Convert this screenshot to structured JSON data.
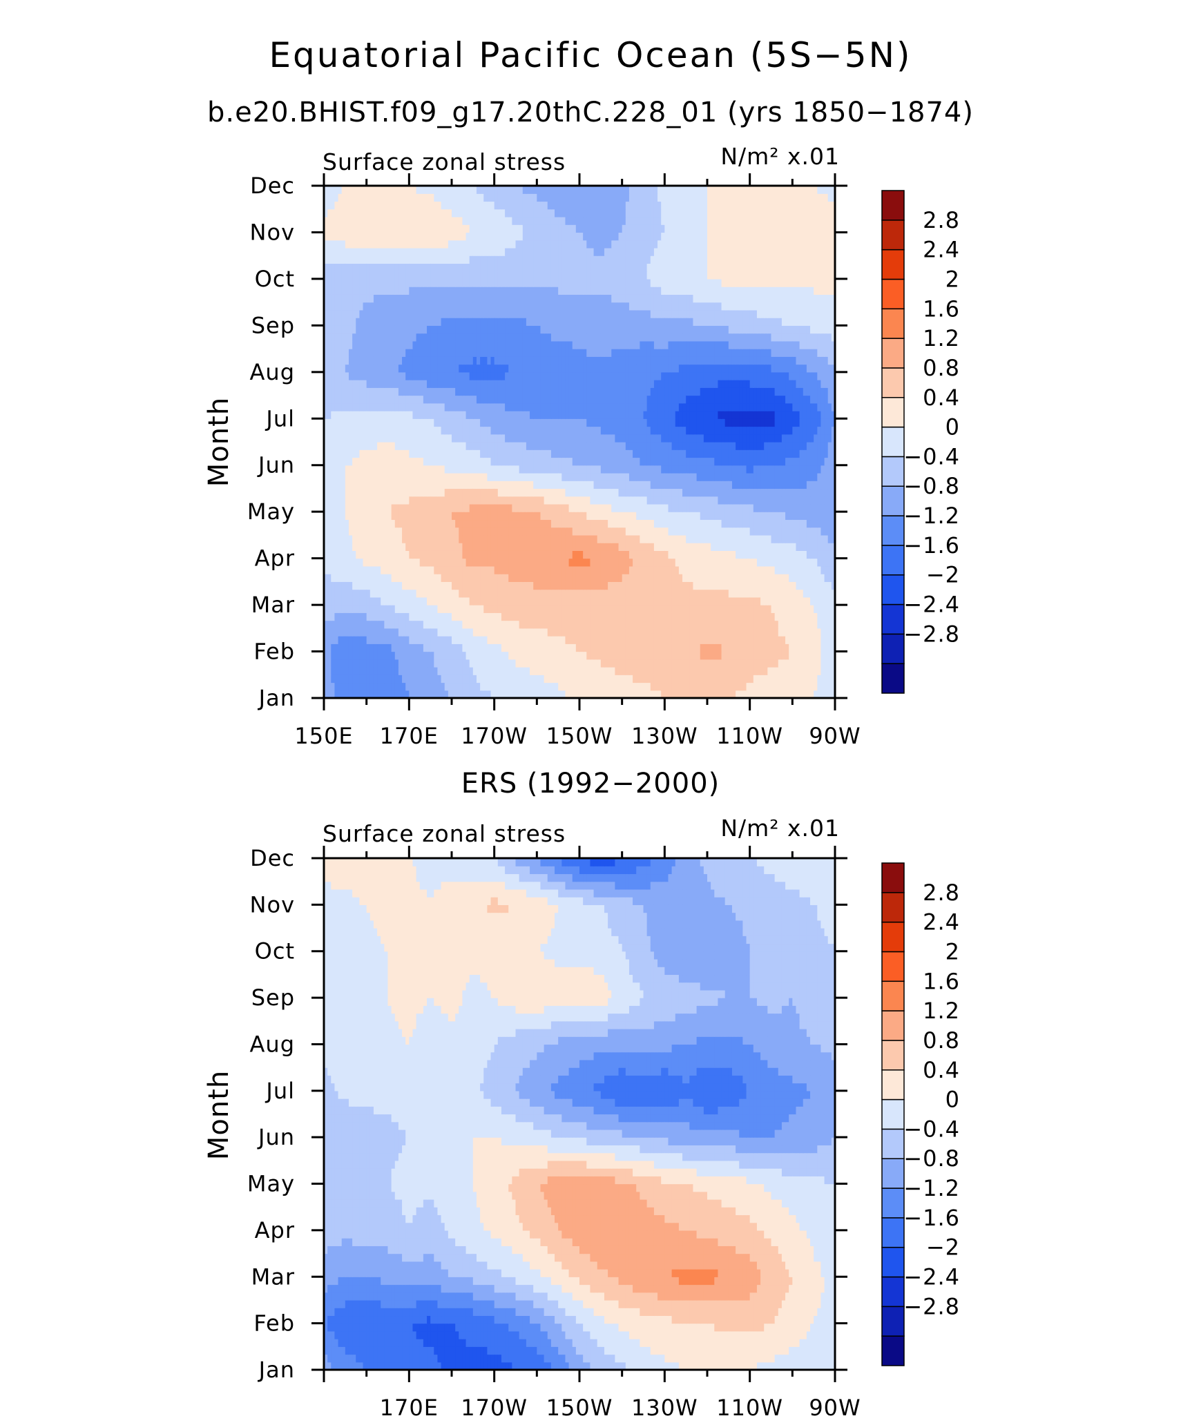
{
  "figure": {
    "title": "Equatorial Pacific Ocean (5S−5N)"
  },
  "colorbar": {
    "colors": [
      "#0a0a86",
      "#0e21b4",
      "#1435d4",
      "#1f55ee",
      "#3d74f5",
      "#5c8df7",
      "#88aaf8",
      "#b3c9fb",
      "#d8e6fc",
      "#fde8d8",
      "#fcc9ae",
      "#fbaa85",
      "#fb8650",
      "#fb5e25",
      "#e43c0a",
      "#bd280a",
      "#8a0d0d"
    ],
    "labels": [
      "2.8",
      "2.4",
      "2",
      "1.6",
      "1.2",
      "0.8",
      "0.4",
      "0",
      "−0.4",
      "−0.8",
      "−1.2",
      "−1.6",
      "−2",
      "−2.4",
      "−2.8"
    ]
  },
  "chart_data": [
    {
      "type": "heatmap",
      "subtitle": "b.e20.BHIST.f09_g17.20thC.228_01 (yrs 1850−1874)",
      "left_label": "Surface zonal stress",
      "units_label": "N/m² x.01",
      "ylabel": "Month",
      "xlabel": "",
      "x_tick_labels": [
        "150E",
        "170E",
        "170W",
        "150W",
        "130W",
        "110W",
        "90W"
      ],
      "y_tick_labels": [
        "Jan",
        "Feb",
        "Mar",
        "Apr",
        "May",
        "Jun",
        "Jul",
        "Aug",
        "Sep",
        "Oct",
        "Nov",
        "Dec"
      ],
      "xlim": [
        150,
        270
      ],
      "ylim": [
        1,
        12
      ],
      "levels": [
        -2.8,
        -2.4,
        -2,
        -1.6,
        -1.2,
        -0.8,
        -0.4,
        0,
        0.4,
        0.8,
        1.2,
        1.6,
        2,
        2.4,
        2.8
      ],
      "x": [
        150,
        155,
        160,
        165,
        170,
        175,
        180,
        185,
        190,
        195,
        200,
        205,
        210,
        215,
        220,
        225,
        230,
        235,
        240,
        245,
        250,
        255,
        260,
        265,
        270
      ],
      "y": [
        1,
        2,
        3,
        4,
        5,
        6,
        7,
        8,
        9,
        10,
        11,
        12
      ],
      "z": [
        [
          -0.6,
          -1.0,
          -1.0,
          -1.0,
          -0.8,
          -0.6,
          -0.4,
          -0.1,
          0.0,
          0.1,
          0.2,
          0.3,
          0.5,
          0.5,
          0.6,
          0.7,
          0.8,
          0.8,
          0.8,
          0.8,
          0.7,
          0.6,
          0.5,
          0.4,
          0.0
        ],
        [
          -0.7,
          -1.1,
          -1.0,
          -0.9,
          -0.6,
          -0.4,
          -0.2,
          0.1,
          0.3,
          0.5,
          0.6,
          0.7,
          0.8,
          0.9,
          1.0,
          1.0,
          1.0,
          1.1,
          1.3,
          1.2,
          1.0,
          0.9,
          0.8,
          0.6,
          0.1
        ],
        [
          -0.2,
          -0.3,
          -0.2,
          0.0,
          0.2,
          0.4,
          0.6,
          0.8,
          0.9,
          1.0,
          1.0,
          1.0,
          1.0,
          1.0,
          0.9,
          0.9,
          0.9,
          0.9,
          0.9,
          0.9,
          0.9,
          0.8,
          0.6,
          0.4,
          0.1
        ],
        [
          0.1,
          0.3,
          0.5,
          0.6,
          0.8,
          0.9,
          1.1,
          1.3,
          1.3,
          1.4,
          1.5,
          1.6,
          1.7,
          1.6,
          1.4,
          1.1,
          0.9,
          0.7,
          0.6,
          0.5,
          0.4,
          0.3,
          0.2,
          0.0,
          -0.3
        ],
        [
          0.2,
          0.4,
          0.6,
          0.8,
          0.9,
          1.0,
          1.2,
          1.3,
          1.4,
          1.3,
          1.2,
          1.0,
          0.8,
          0.6,
          0.4,
          0.3,
          0.1,
          0.0,
          -0.1,
          -0.2,
          -0.3,
          -0.4,
          -0.5,
          -0.6,
          -0.7
        ],
        [
          0.3,
          0.4,
          0.5,
          0.6,
          0.5,
          0.4,
          0.3,
          0.2,
          0.0,
          -0.1,
          -0.2,
          -0.3,
          -0.4,
          -0.5,
          -0.6,
          -0.8,
          -0.9,
          -1.0,
          -1.1,
          -1.2,
          -1.3,
          -1.2,
          -1.1,
          -0.9,
          -0.6
        ],
        [
          0.0,
          0.1,
          0.2,
          0.2,
          0.1,
          0.0,
          -0.2,
          -0.4,
          -0.6,
          -0.7,
          -0.8,
          -0.8,
          -0.8,
          -0.9,
          -1.0,
          -1.2,
          -1.5,
          -1.8,
          -2.0,
          -2.1,
          -2.2,
          -2.1,
          -1.8,
          -1.4,
          -0.8
        ],
        [
          -0.3,
          -0.4,
          -0.6,
          -0.7,
          -0.9,
          -1.1,
          -1.2,
          -1.3,
          -1.3,
          -1.2,
          -1.1,
          -1.0,
          -0.9,
          -0.9,
          -1.0,
          -1.1,
          -1.2,
          -1.3,
          -1.4,
          -1.5,
          -1.4,
          -1.3,
          -1.1,
          -0.8,
          -0.5
        ],
        [
          -0.2,
          -0.3,
          -0.5,
          -0.6,
          -0.7,
          -0.8,
          -0.9,
          -0.9,
          -0.9,
          -0.9,
          -0.8,
          -0.7,
          -0.7,
          -0.6,
          -0.6,
          -0.6,
          -0.5,
          -0.5,
          -0.4,
          -0.3,
          -0.2,
          -0.1,
          0.0,
          0.1,
          0.2
        ],
        [
          -0.2,
          -0.2,
          -0.3,
          -0.3,
          -0.3,
          -0.3,
          -0.3,
          -0.3,
          -0.3,
          -0.3,
          -0.3,
          -0.3,
          -0.3,
          -0.3,
          -0.2,
          0.0,
          0.2,
          0.3,
          0.4,
          0.5,
          0.5,
          0.5,
          0.5,
          0.5,
          0.5
        ],
        [
          0.5,
          0.6,
          0.7,
          0.8,
          0.8,
          0.8,
          0.6,
          0.4,
          0.3,
          0.1,
          -0.1,
          -0.3,
          -0.4,
          -0.5,
          -0.4,
          -0.2,
          0.0,
          0.2,
          0.4,
          0.5,
          0.6,
          0.6,
          0.6,
          0.6,
          0.6
        ],
        [
          0.2,
          0.4,
          0.5,
          0.5,
          0.4,
          0.3,
          0.1,
          0.0,
          -0.2,
          -0.4,
          -0.5,
          -0.6,
          -0.7,
          -0.7,
          -0.5,
          -0.2,
          0.1,
          0.3,
          0.4,
          0.5,
          0.5,
          0.5,
          0.5,
          0.4,
          0.3
        ]
      ]
    },
    {
      "type": "heatmap",
      "subtitle": "ERS (1992−2000)",
      "left_label": "Surface zonal stress",
      "units_label": "N/m² x.01",
      "ylabel": "Month",
      "xlabel": "",
      "x_tick_labels": [
        "170E",
        "170W",
        "150W",
        "130W",
        "110W",
        "90W"
      ],
      "y_tick_labels": [
        "Jan",
        "Feb",
        "Mar",
        "Apr",
        "May",
        "Jun",
        "Jul",
        "Aug",
        "Sep",
        "Oct",
        "Nov",
        "Dec"
      ],
      "xlim": [
        150,
        270
      ],
      "ylim": [
        1,
        12
      ],
      "levels": [
        -2.8,
        -2.4,
        -2,
        -1.6,
        -1.2,
        -0.8,
        -0.4,
        0,
        0.4,
        0.8,
        1.2,
        1.6,
        2,
        2.4,
        2.8
      ],
      "x": [
        150,
        155,
        160,
        165,
        170,
        175,
        180,
        185,
        190,
        195,
        200,
        205,
        210,
        215,
        220,
        225,
        230,
        235,
        240,
        245,
        250,
        255,
        260,
        265,
        270
      ],
      "y": [
        1,
        2,
        3,
        4,
        5,
        6,
        7,
        8,
        9,
        10,
        11,
        12
      ],
      "z": [
        [
          -0.6,
          -1.0,
          -1.2,
          -1.3,
          -1.5,
          -1.5,
          -1.7,
          -1.7,
          -1.8,
          -1.6,
          -1.5,
          -1.1,
          -0.6,
          -0.3,
          -0.1,
          0.2,
          0.3,
          0.4,
          0.5,
          0.5,
          0.4,
          0.3,
          0.2,
          0.2,
          0.1
        ],
        [
          -1.2,
          -1.5,
          -1.6,
          -1.5,
          -1.6,
          -1.7,
          -1.6,
          -1.5,
          -1.3,
          -1.1,
          -0.8,
          -0.4,
          0.0,
          0.3,
          0.5,
          0.6,
          0.7,
          0.8,
          0.8,
          0.9,
          0.9,
          0.8,
          0.6,
          0.4,
          0.3
        ],
        [
          -0.6,
          -0.8,
          -0.8,
          -0.7,
          -0.6,
          -0.6,
          -0.4,
          -0.3,
          -0.1,
          0.1,
          0.3,
          0.6,
          0.9,
          1.1,
          1.3,
          1.5,
          1.6,
          1.7,
          1.7,
          1.6,
          1.4,
          1.1,
          0.8,
          0.5,
          0.3
        ],
        [
          -0.2,
          -0.3,
          -0.2,
          -0.2,
          0.0,
          -0.2,
          0.1,
          0.3,
          0.5,
          0.7,
          0.9,
          1.2,
          1.4,
          1.6,
          1.6,
          1.4,
          1.3,
          1.2,
          1.1,
          1.0,
          0.9,
          0.7,
          0.5,
          0.3,
          0.1
        ],
        [
          -0.1,
          -0.2,
          -0.1,
          0.0,
          0.1,
          0.1,
          0.2,
          0.4,
          0.6,
          0.9,
          1.2,
          1.4,
          1.5,
          1.4,
          1.3,
          1.1,
          0.9,
          0.8,
          0.7,
          0.6,
          0.5,
          0.3,
          0.2,
          0.1,
          0.0
        ],
        [
          -0.3,
          -0.4,
          -0.3,
          -0.1,
          0.0,
          0.2,
          0.3,
          0.4,
          0.4,
          0.3,
          0.2,
          0.0,
          -0.1,
          -0.2,
          -0.3,
          -0.4,
          -0.5,
          -0.6,
          -0.7,
          -0.7,
          -0.8,
          -0.8,
          -0.7,
          -0.6,
          -0.4
        ],
        [
          -0.1,
          0.1,
          0.2,
          0.1,
          0.2,
          0.3,
          0.2,
          0.1,
          -0.2,
          -0.4,
          -0.7,
          -0.9,
          -1.1,
          -1.3,
          -1.6,
          -1.5,
          -1.6,
          -1.3,
          -1.6,
          -1.5,
          -1.2,
          -1.0,
          -0.9,
          -0.8,
          -0.6
        ],
        [
          0.1,
          0.2,
          0.2,
          0.3,
          0.4,
          0.2,
          0.3,
          0.2,
          0.0,
          -0.2,
          -0.3,
          -0.5,
          -0.6,
          -0.7,
          -0.7,
          -0.6,
          -0.7,
          -0.8,
          -0.9,
          -0.9,
          -0.8,
          -0.6,
          -0.5,
          -0.4,
          -0.3
        ],
        [
          0.1,
          0.2,
          0.3,
          0.4,
          0.5,
          0.4,
          0.5,
          0.3,
          0.4,
          0.6,
          0.7,
          0.6,
          0.7,
          0.6,
          0.3,
          0.0,
          -0.1,
          -0.2,
          -0.3,
          -0.4,
          -0.4,
          -0.3,
          -0.4,
          -0.2,
          0.0
        ],
        [
          0.2,
          0.3,
          0.3,
          0.4,
          0.5,
          0.4,
          0.5,
          0.5,
          0.5,
          0.4,
          0.4,
          0.3,
          0.3,
          0.2,
          0.0,
          -0.3,
          -0.6,
          -0.8,
          -0.8,
          -0.6,
          -0.4,
          -0.3,
          -0.2,
          -0.1,
          0.0
        ],
        [
          0.3,
          0.3,
          0.4,
          0.5,
          0.5,
          0.4,
          0.6,
          0.7,
          0.9,
          0.8,
          0.7,
          0.4,
          0.2,
          0.0,
          -0.2,
          -0.4,
          -0.6,
          -0.6,
          -0.5,
          -0.4,
          -0.3,
          -0.2,
          -0.1,
          0.0,
          0.1
        ],
        [
          0.5,
          0.6,
          0.7,
          0.5,
          0.4,
          0.3,
          0.2,
          0.1,
          0.0,
          -0.5,
          -0.9,
          -1.3,
          -1.7,
          -1.8,
          -1.7,
          -1.4,
          -1.0,
          -0.6,
          -0.3,
          -0.1,
          0.0,
          0.1,
          0.2,
          0.3,
          0.3
        ]
      ]
    }
  ]
}
